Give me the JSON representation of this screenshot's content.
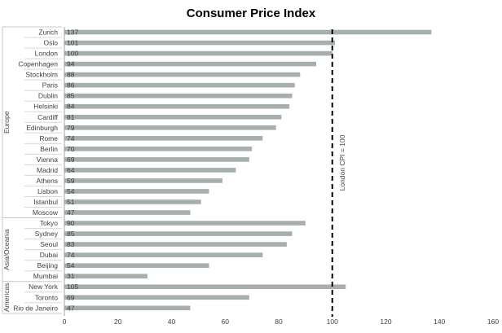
{
  "chart_data": {
    "type": "bar",
    "orientation": "horizontal",
    "title": "Consumer Price Index",
    "xlabel": "",
    "ylabel": "",
    "xlim": [
      0,
      160
    ],
    "xticks": [
      0,
      20,
      40,
      60,
      80,
      100,
      120,
      140,
      160
    ],
    "bar_color": "#a6aeae",
    "groups": [
      {
        "name": "Europe",
        "categories": [
          "Zurich",
          "Oslo",
          "London",
          "Copenhagen",
          "Stockholm",
          "Paris",
          "Dublin",
          "Helsinki",
          "Cardiff",
          "Edinburgh",
          "Rome",
          "Berlin",
          "Vienna",
          "Madrid",
          "Athens",
          "Lisbon",
          "Istanbul",
          "Moscow"
        ],
        "values": [
          137,
          101,
          100,
          94,
          88,
          86,
          85,
          84,
          81,
          79,
          74,
          70,
          69,
          64,
          59,
          54,
          51,
          47
        ]
      },
      {
        "name": "Asia/Oceania",
        "categories": [
          "Tokyo",
          "Sydney",
          "Seoul",
          "Dubai",
          "Beijing",
          "Mumbai"
        ],
        "values": [
          90,
          85,
          83,
          74,
          54,
          31
        ]
      },
      {
        "name": "Americas",
        "categories": [
          "New York",
          "Toronto",
          "Rio de Janeiro"
        ],
        "values": [
          105,
          69,
          47
        ]
      }
    ],
    "reference_line": {
      "value": 100,
      "label": "London CPI = 100"
    }
  }
}
